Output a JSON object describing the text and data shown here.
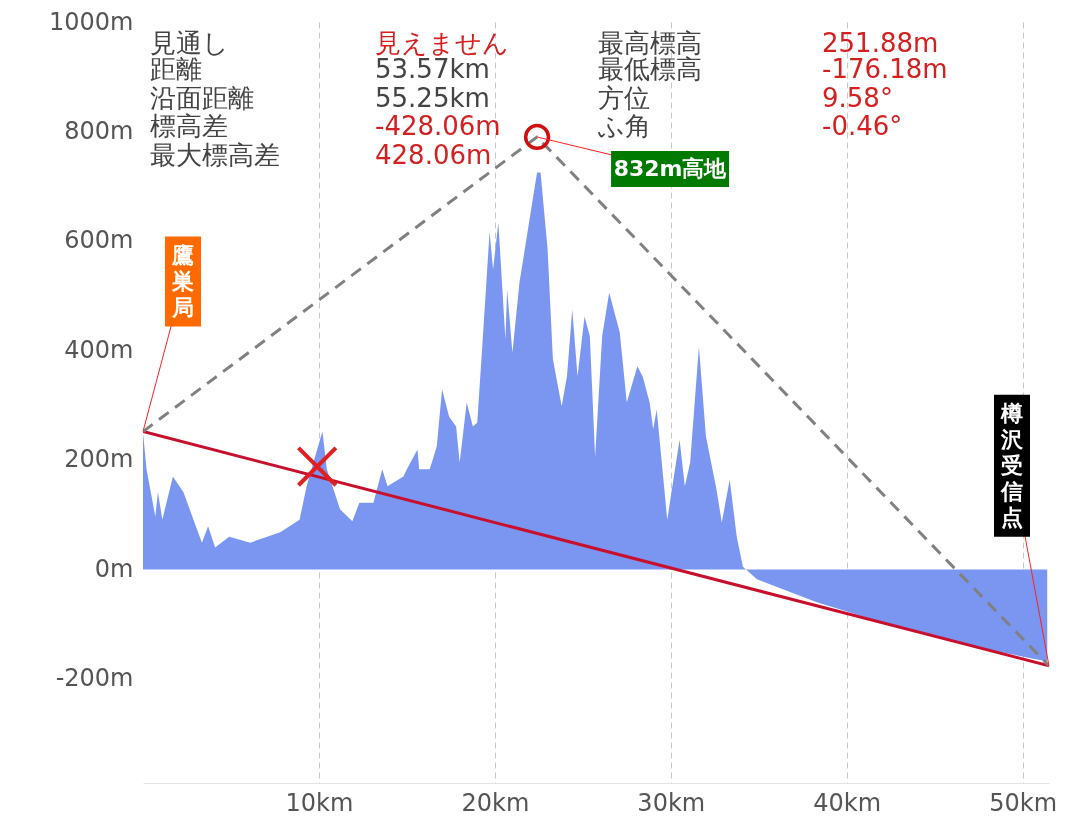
{
  "chart_data": {
    "type": "area",
    "xlim": [
      0,
      51.5
    ],
    "ylim": [
      -390,
      1000
    ],
    "xticks": [
      {
        "value": 10,
        "label": "10km"
      },
      {
        "value": 20,
        "label": "20km"
      },
      {
        "value": 30,
        "label": "30km"
      },
      {
        "value": 40,
        "label": "40km"
      },
      {
        "value": 50,
        "label": "50km"
      }
    ],
    "yticks": [
      {
        "value": 1000,
        "label": "1000m"
      },
      {
        "value": 800,
        "label": "800m"
      },
      {
        "value": 600,
        "label": "600m"
      },
      {
        "value": 400,
        "label": "400m"
      },
      {
        "value": 200,
        "label": "200m"
      },
      {
        "value": 0,
        "label": "0m"
      },
      {
        "value": -200,
        "label": "-200m"
      }
    ],
    "grid": "x",
    "series": [
      {
        "color": "#7b96f0",
        "x": [
          0,
          0.2,
          0.7,
          0.85,
          1.1,
          1.7,
          2.3,
          2.8,
          3.35,
          3.7,
          4.1,
          4.9,
          6.1,
          7.8,
          8.9,
          9.3,
          9.9,
          10.2,
          10.45,
          11.2,
          11.9,
          12.3,
          13.1,
          13.6,
          13.9,
          14.8,
          15.0,
          15.6,
          15.7,
          16.3,
          16.7,
          17.0,
          17.4,
          17.8,
          18.0,
          18.4,
          18.75,
          19.0,
          19.3,
          19.7,
          19.9,
          20.2,
          20.6,
          20.7,
          21.0,
          21.4,
          22.0,
          22.4,
          22.6,
          23.0,
          23.3,
          23.8,
          24.1,
          24.4,
          24.7,
          25.1,
          25.4,
          25.7,
          26.1,
          26.5,
          27.1,
          27.5,
          28.1,
          28.4,
          28.8,
          29.0,
          29.2,
          29.8,
          30.5,
          30.8,
          31.1,
          31.6,
          32.0,
          32.6,
          32.9,
          33.35,
          33.75,
          34.1,
          34.9,
          38.3,
          43.4,
          47.2,
          51.4
        ],
        "values": [
          250,
          183,
          97,
          141,
          91,
          170,
          141,
          97,
          49,
          79,
          40,
          60,
          49,
          68,
          91,
          152,
          219,
          252,
          183,
          110,
          88,
          122,
          122,
          183,
          152,
          170,
          183,
          219,
          183,
          183,
          225,
          329,
          279,
          261,
          195,
          305,
          261,
          268,
          415,
          616,
          548,
          634,
          420,
          511,
          396,
          524,
          645,
          725,
          725,
          584,
          384,
          298,
          353,
          475,
          353,
          462,
          426,
          206,
          426,
          506,
          433,
          305,
          371,
          353,
          305,
          256,
          292,
          91,
          237,
          152,
          195,
          407,
          243,
          146,
          86,
          164,
          60,
          5,
          -18,
          -60,
          -110,
          -141,
          -168
        ]
      },
      {
        "type": "line",
        "color": "#c8102e",
        "x": [
          0,
          51.5
        ],
        "values": [
          252,
          -176
        ]
      },
      {
        "type": "line",
        "line_style": "dashed",
        "color": "#808080",
        "x": [
          0,
          22.4,
          51.5
        ],
        "values": [
          252,
          790,
          -176
        ]
      },
      {
        "type": "scatter",
        "marker": "cross",
        "color": "#e02020",
        "x": [
          9.9
        ],
        "values": [
          188
        ]
      },
      {
        "type": "scatter",
        "marker": "circle",
        "color": "#d01010",
        "x": [
          22.4
        ],
        "values": [
          790
        ]
      }
    ],
    "annotations": [
      "見通し",
      "距離",
      "沿面距離",
      "標高差",
      "最大標高差",
      "見えません",
      "53.57km",
      "55.25km",
      "-428.06m",
      "428.06m",
      "最高標高",
      "最低標高",
      "方位",
      "ふ角",
      "251.88m",
      "-176.18m",
      "9.58°",
      "-0.46°",
      {
        "text": "鷹巣局",
        "x": 0,
        "y": 252
      },
      {
        "text": "832m高地",
        "x": 22.4,
        "y": 790
      },
      {
        "text": "樽沢受信点",
        "x": 51.5,
        "y": -176
      }
    ]
  }
}
